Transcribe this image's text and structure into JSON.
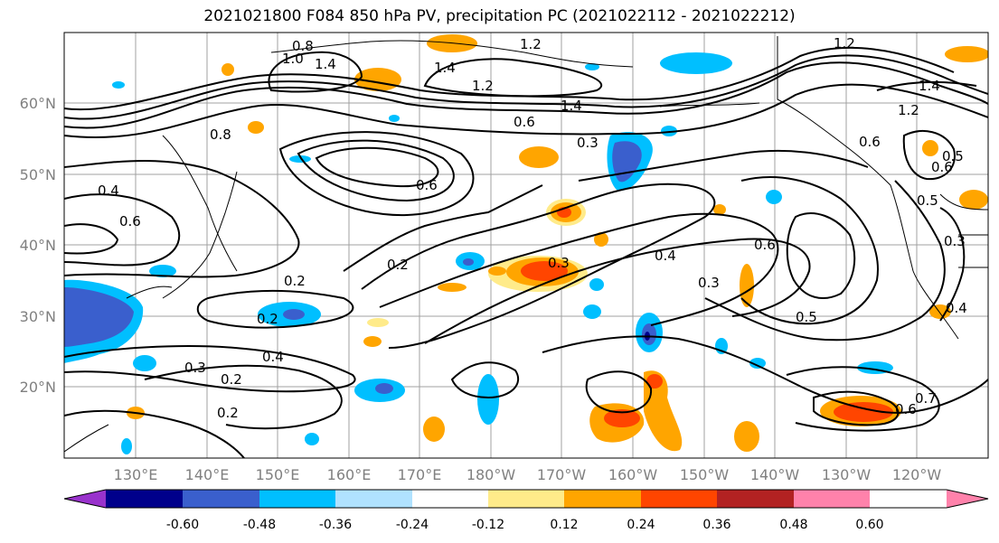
{
  "title": "2021021800 F084 850 hPa PV, precipitation PC (2021022112 - 2021022212)",
  "map": {
    "lat_labels": [
      "60°N",
      "50°N",
      "40°N",
      "30°N",
      "20°N"
    ],
    "lon_labels": [
      "130°E",
      "140°E",
      "150°E",
      "160°E",
      "170°E",
      "180°W",
      "170°W",
      "160°W",
      "150°W",
      "140°W",
      "130°W",
      "120°W"
    ],
    "contour_labels": [
      "0.8",
      "1.4",
      "1.0",
      "1.4",
      "1.2",
      "1.2",
      "1.2",
      "1.4",
      "0.6",
      "0.3",
      "0.8",
      "0.6",
      "0.4",
      "0.6",
      "0.6",
      "0.2",
      "0.3",
      "0.4",
      "0.3",
      "0.5",
      "0.6",
      "0.2",
      "0.2",
      "0.4",
      "0.3",
      "0.2",
      "0.2",
      "0.5",
      "0.6",
      "0.5",
      "0.7",
      "0.6",
      "0.3",
      "0.4",
      "1.4",
      "1.2"
    ]
  },
  "colorbar": {
    "ticks": [
      "-0.60",
      "-0.48",
      "-0.36",
      "-0.24",
      "-0.12",
      "0.12",
      "0.24",
      "0.36",
      "0.48",
      "0.60"
    ],
    "colors": [
      "#9932cc",
      "#00008b",
      "#3a5fcd",
      "#00bfff",
      "#b0e2ff",
      "#ffffff",
      "#ffeb8a",
      "#ffa500",
      "#ff4500",
      "#b22222",
      "#ff82ab"
    ]
  }
}
